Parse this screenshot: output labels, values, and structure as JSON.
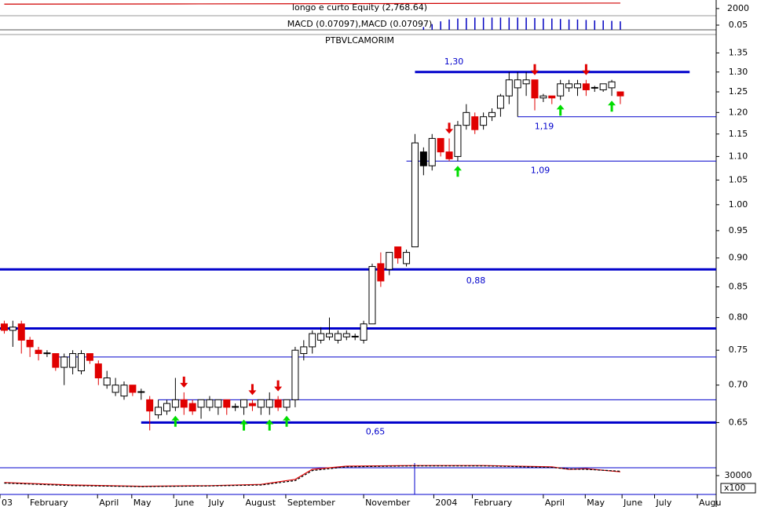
{
  "chart_data": [
    {
      "type": "line",
      "title": "longo e curto Equity (2,768.64)",
      "x": [
        0,
        20,
        40,
        50,
        60,
        72
      ],
      "values": [
        2620,
        2650,
        2690,
        2720,
        2750,
        2768.64
      ],
      "color": "#d00000",
      "xlim": [
        -0.5,
        83.2
      ],
      "ylim": [
        1000,
        3200
      ],
      "yticks": [
        2000
      ]
    },
    {
      "type": "bar",
      "title": "MACD (0.07097),MACD (0.07097)",
      "x": [
        49,
        50,
        51,
        52,
        53,
        54,
        55,
        56,
        57,
        58,
        59,
        60,
        61,
        62,
        63,
        64,
        65,
        66,
        67,
        68,
        69,
        70,
        71,
        72
      ],
      "values": [
        0.03,
        0.06,
        0.09,
        0.11,
        0.12,
        0.125,
        0.13,
        0.13,
        0.13,
        0.13,
        0.13,
        0.13,
        0.13,
        0.125,
        0.12,
        0.12,
        0.115,
        0.11,
        0.11,
        0.105,
        0.1,
        0.1,
        0.095,
        0.09
      ],
      "color": "#0000c0",
      "xlim": [
        -0.5,
        83.2
      ],
      "ylim": [
        0,
        0.15
      ],
      "yticks": [
        0.05
      ]
    },
    {
      "type": "candlestick",
      "title": "PTBVLCAMORIM",
      "open": [
        0.79,
        0.78,
        0.79,
        0.765,
        0.75,
        0.745,
        0.745,
        0.725,
        0.725,
        0.72,
        0.745,
        0.73,
        0.7,
        0.69,
        0.685,
        0.7,
        0.69,
        0.68,
        0.66,
        0.665,
        0.67,
        0.68,
        0.675,
        0.67,
        0.67,
        0.67,
        0.68,
        0.67,
        0.67,
        0.675,
        0.67,
        0.67,
        0.68,
        0.67,
        0.68,
        0.745,
        0.755,
        0.765,
        0.77,
        0.765,
        0.77,
        0.77,
        0.765,
        0.79,
        0.89,
        0.88,
        0.92,
        0.89,
        0.92,
        1.08,
        1.08,
        1.14,
        1.11,
        1.1,
        1.17,
        1.19,
        1.17,
        1.19,
        1.21,
        1.24,
        1.26,
        1.27,
        1.28,
        1.235,
        1.24,
        1.24,
        1.26,
        1.26,
        1.27,
        1.26,
        1.255,
        1.26,
        1.25
      ],
      "high": [
        0.795,
        0.795,
        0.795,
        0.77,
        0.755,
        0.75,
        0.745,
        0.745,
        0.75,
        0.75,
        0.745,
        0.735,
        0.72,
        0.71,
        0.705,
        0.7,
        0.695,
        0.685,
        0.68,
        0.68,
        0.71,
        0.69,
        0.68,
        0.68,
        0.685,
        0.68,
        0.68,
        0.675,
        0.68,
        0.68,
        0.68,
        0.69,
        0.685,
        0.68,
        0.755,
        0.765,
        0.78,
        0.785,
        0.8,
        0.78,
        0.78,
        0.775,
        0.795,
        0.89,
        0.91,
        0.91,
        0.92,
        0.915,
        1.15,
        1.12,
        1.15,
        1.14,
        1.14,
        1.18,
        1.22,
        1.2,
        1.2,
        1.21,
        1.245,
        1.3,
        1.3,
        1.3,
        1.28,
        1.245,
        1.24,
        1.28,
        1.28,
        1.28,
        1.28,
        1.265,
        1.27,
        1.28,
        1.25
      ],
      "low": [
        0.775,
        0.755,
        0.745,
        0.74,
        0.735,
        0.74,
        0.72,
        0.7,
        0.715,
        0.715,
        0.73,
        0.7,
        0.695,
        0.685,
        0.68,
        0.685,
        0.68,
        0.64,
        0.655,
        0.66,
        0.665,
        0.66,
        0.66,
        0.655,
        0.665,
        0.66,
        0.66,
        0.665,
        0.66,
        0.665,
        0.66,
        0.66,
        0.665,
        0.665,
        0.67,
        0.735,
        0.745,
        0.76,
        0.765,
        0.76,
        0.765,
        0.765,
        0.76,
        0.79,
        0.85,
        0.87,
        0.89,
        0.885,
        0.92,
        1.06,
        1.07,
        1.1,
        1.09,
        1.09,
        1.16,
        1.15,
        1.16,
        1.18,
        1.19,
        1.22,
        1.19,
        1.24,
        1.205,
        1.225,
        1.22,
        1.23,
        1.25,
        1.24,
        1.24,
        1.25,
        1.25,
        1.24,
        1.22
      ],
      "close": [
        0.78,
        0.785,
        0.765,
        0.755,
        0.745,
        0.746,
        0.725,
        0.74,
        0.745,
        0.745,
        0.735,
        0.71,
        0.71,
        0.7,
        0.7,
        0.69,
        0.691,
        0.665,
        0.67,
        0.675,
        0.68,
        0.67,
        0.665,
        0.68,
        0.68,
        0.68,
        0.67,
        0.671,
        0.68,
        0.672,
        0.68,
        0.68,
        0.67,
        0.68,
        0.75,
        0.755,
        0.775,
        0.775,
        0.775,
        0.775,
        0.775,
        0.771,
        0.79,
        0.885,
        0.86,
        0.91,
        0.9,
        0.91,
        1.13,
        1.11,
        1.14,
        1.11,
        1.095,
        1.17,
        1.2,
        1.16,
        1.19,
        1.2,
        1.24,
        1.28,
        1.28,
        1.28,
        1.235,
        1.24,
        1.235,
        1.27,
        1.27,
        1.27,
        1.255,
        1.261,
        1.27,
        1.275,
        1.24
      ],
      "up_color": "#ffffff",
      "down_color": "#e00000",
      "black_bars": [
        49
      ],
      "black_color": "#000000",
      "xlim": [
        -0.5,
        83.2
      ],
      "ylim": [
        0.6,
        1.4
      ],
      "log_scale": true,
      "yticks": [
        1.35,
        {
          "value": 1.3,
          "label": "1.30"
        },
        1.25,
        {
          "value": 1.2,
          "label": "1.20"
        },
        1.15,
        {
          "value": 1.1,
          "label": "1.10"
        },
        1.05,
        {
          "value": 1,
          "label": "1.00"
        },
        0.95,
        {
          "value": 0.9,
          "label": "0.90"
        },
        0.85,
        {
          "value": 0.8,
          "label": "0.80"
        },
        0.75,
        {
          "value": 0.7,
          "label": "0.70"
        },
        0.65
      ],
      "xticks": [
        {
          "value": -0.5,
          "label": "03"
        },
        {
          "value": 2.8,
          "label": "February"
        },
        {
          "value": 10.9,
          "label": "April"
        },
        {
          "value": 14.9,
          "label": "May"
        },
        {
          "value": 19.8,
          "label": "June"
        },
        {
          "value": 23.7,
          "label": "July"
        },
        {
          "value": 28,
          "label": "August"
        },
        {
          "value": 32.9,
          "label": "September"
        },
        {
          "value": 42,
          "label": "November"
        },
        {
          "value": 50.2,
          "label": "2004"
        },
        {
          "value": 54.7,
          "label": "February"
        },
        {
          "value": 63,
          "label": "April"
        },
        {
          "value": 67.9,
          "label": "May"
        },
        {
          "value": 72.2,
          "label": "June"
        },
        {
          "value": 76,
          "label": "July"
        },
        {
          "value": 81,
          "label": "Augu"
        }
      ],
      "levels": [
        {
          "value": 1.3,
          "label": "1,30",
          "from": 48,
          "to": 80.1,
          "bold": true
        },
        {
          "value": 1.19,
          "label": "1,19",
          "from": 60,
          "bold": false
        },
        {
          "value": 1.09,
          "label": "1,09",
          "from": 47,
          "bold": false
        },
        {
          "value": 0.88,
          "label": "0,88",
          "bold": true
        },
        {
          "value": 0.783,
          "bold": true
        },
        {
          "value": 0.74,
          "from": 6,
          "bold": false
        },
        {
          "value": 0.68,
          "from": 18,
          "bold": false
        },
        {
          "value": 0.65,
          "label": "0,65",
          "from": 16,
          "bold": true
        }
      ],
      "level_color": "#0000cc",
      "sell_signals": [
        21,
        29,
        32,
        52,
        62,
        68
      ],
      "sell_color": "#e00000",
      "buy_signals": [
        20,
        28,
        31,
        33,
        53,
        65,
        71
      ],
      "buy_color": "#00dd00"
    },
    {
      "type": "line",
      "unit_label": "x100",
      "xlim": [
        -0.5,
        83.2
      ],
      "ylim": [
        0,
        50000
      ],
      "yticks": [
        30000
      ],
      "series": [
        {
          "color": "#e00000",
          "x": [
            0,
            8,
            16,
            24,
            30,
            34,
            36,
            40,
            48,
            56,
            64,
            66,
            68,
            72
          ],
          "values": [
            19000,
            15000,
            13000,
            14000,
            16000,
            24000,
            40000,
            45000,
            46000,
            46000,
            44000,
            40000,
            41000,
            36000
          ]
        },
        {
          "color": "#000000",
          "dashed": true,
          "x": [
            0,
            8,
            16,
            24,
            30,
            34,
            36,
            40,
            48,
            56,
            64,
            66,
            68,
            72
          ],
          "values": [
            18000,
            14000,
            12500,
            13500,
            15000,
            22000,
            38000,
            44000,
            45500,
            45500,
            43000,
            40500,
            40000,
            37000
          ]
        }
      ]
    }
  ]
}
